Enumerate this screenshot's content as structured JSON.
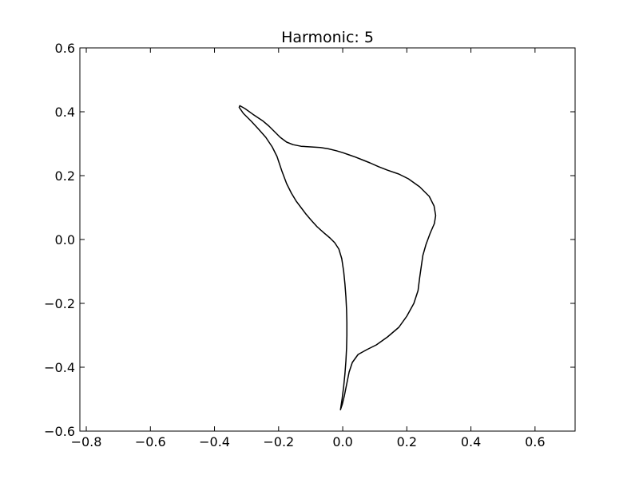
{
  "chart_data": {
    "type": "line",
    "title": "Harmonic: 5",
    "xlabel": "",
    "ylabel": "",
    "xlim": [
      -0.82,
      0.725
    ],
    "ylim": [
      -0.6,
      0.6
    ],
    "x_ticks": [
      -0.8,
      -0.6,
      -0.4,
      -0.2,
      0.0,
      0.2,
      0.4,
      0.6
    ],
    "x_tick_labels": [
      "−0.8",
      "−0.6",
      "−0.4",
      "−0.2",
      "0.0",
      "0.2",
      "0.4",
      "0.6"
    ],
    "y_ticks": [
      0.6,
      0.4,
      0.2,
      0.0,
      -0.2,
      -0.4,
      -0.6
    ],
    "y_tick_labels": [
      "0.6",
      "0.4",
      "0.2",
      "0.0",
      "−0.2",
      "−0.4",
      "−0.6"
    ],
    "grid": false,
    "series": [
      {
        "closed": true,
        "color": "#000000",
        "x": [
          -0.007,
          -0.001,
          0.005,
          0.01,
          0.015,
          0.02,
          0.03,
          0.048,
          0.075,
          0.105,
          0.14,
          0.175,
          0.2,
          0.222,
          0.235,
          0.24,
          0.245,
          0.25,
          0.26,
          0.273,
          0.286,
          0.29,
          0.285,
          0.27,
          0.24,
          0.205,
          0.175,
          0.14,
          0.112,
          0.085,
          0.06,
          0.04,
          0.02,
          0.0,
          -0.02,
          -0.045,
          -0.07,
          -0.1,
          -0.13,
          -0.155,
          -0.175,
          -0.195,
          -0.21,
          -0.22,
          -0.23,
          -0.25,
          -0.28,
          -0.305,
          -0.321,
          -0.323,
          -0.31,
          -0.285,
          -0.262,
          -0.24,
          -0.22,
          -0.205,
          -0.19,
          -0.175,
          -0.16,
          -0.145,
          -0.13,
          -0.115,
          -0.098,
          -0.08,
          -0.06,
          -0.04,
          -0.025,
          -0.012,
          -0.003,
          0.003,
          0.007,
          0.01,
          0.012,
          0.013,
          0.013,
          0.012,
          0.01,
          0.007,
          0.003,
          -0.002,
          -0.007
        ],
        "y": [
          -0.533,
          -0.515,
          -0.49,
          -0.465,
          -0.44,
          -0.415,
          -0.385,
          -0.36,
          -0.345,
          -0.33,
          -0.305,
          -0.275,
          -0.24,
          -0.2,
          -0.16,
          -0.12,
          -0.085,
          -0.05,
          -0.015,
          0.02,
          0.05,
          0.075,
          0.105,
          0.135,
          0.165,
          0.19,
          0.205,
          0.217,
          0.228,
          0.24,
          0.25,
          0.258,
          0.265,
          0.272,
          0.278,
          0.284,
          0.288,
          0.29,
          0.292,
          0.297,
          0.305,
          0.32,
          0.335,
          0.345,
          0.355,
          0.372,
          0.392,
          0.41,
          0.419,
          0.414,
          0.395,
          0.37,
          0.345,
          0.32,
          0.29,
          0.26,
          0.215,
          0.175,
          0.145,
          0.12,
          0.1,
          0.08,
          0.06,
          0.04,
          0.022,
          0.005,
          -0.01,
          -0.03,
          -0.06,
          -0.1,
          -0.14,
          -0.18,
          -0.22,
          -0.26,
          -0.3,
          -0.34,
          -0.38,
          -0.42,
          -0.46,
          -0.5,
          -0.533
        ]
      }
    ]
  }
}
